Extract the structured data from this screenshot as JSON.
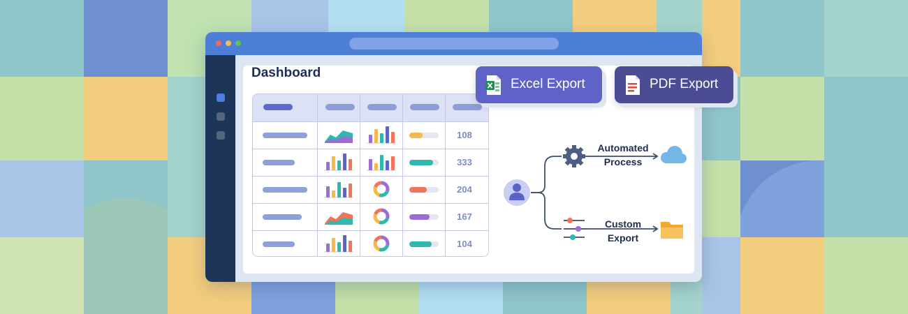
{
  "page": {
    "title": "Dashboard"
  },
  "export_buttons": {
    "excel": {
      "label": "Excel Export",
      "icon": "excel-file-icon",
      "color": "#5f63c8"
    },
    "pdf": {
      "label": "PDF Export",
      "icon": "pdf-file-icon",
      "color": "#4c4c95"
    }
  },
  "table": {
    "rows": [
      {
        "value": "108",
        "cell2_icon": "area-chart-icon",
        "cell3_icon": "bar-chart-icon",
        "progress": 0.45,
        "progress_color": "#f6b94a"
      },
      {
        "value": "333",
        "cell2_icon": "bar-chart-icon",
        "cell3_icon": "bar-chart-icon",
        "progress": 0.8,
        "progress_color": "#2fb8ad"
      },
      {
        "value": "204",
        "cell2_icon": "bar-chart-icon",
        "cell3_icon": "donut-chart-icon",
        "progress": 0.6,
        "progress_color": "#f27559"
      },
      {
        "value": "167",
        "cell2_icon": "area-chart-icon",
        "cell3_icon": "donut-chart-icon",
        "progress": 0.7,
        "progress_color": "#9b6fd0"
      },
      {
        "value": "104",
        "cell2_icon": "bar-chart-icon",
        "cell3_icon": "donut-chart-icon",
        "progress": 0.75,
        "progress_color": "#2fb8ad"
      }
    ]
  },
  "flow": {
    "start_icon": "user-icon",
    "automated": {
      "line1": "Automated",
      "line2": "Process",
      "icon": "gear-icon",
      "target_icon": "cloud-icon"
    },
    "custom": {
      "line1": "Custom",
      "line2": "Export",
      "icon": "sliders-icon",
      "target_icon": "folder-icon"
    }
  },
  "colors": {
    "sidebar": "#1d3559",
    "titlebar": "#4d7fd6",
    "accent": "#5f63c8"
  }
}
